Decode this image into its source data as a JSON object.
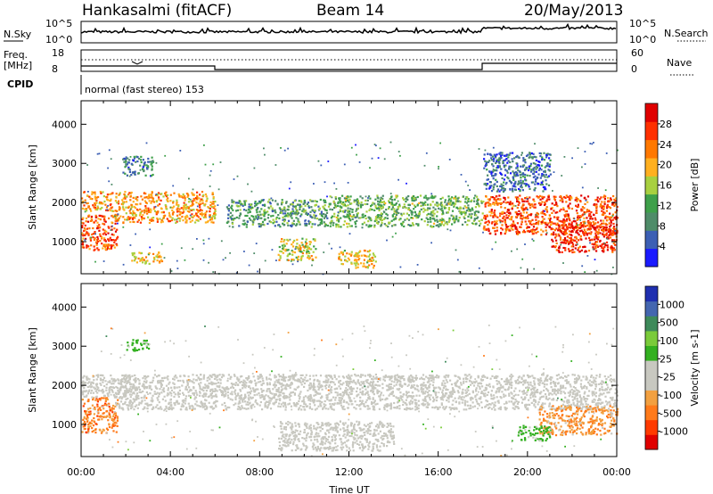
{
  "header": {
    "station": "Hankasalmi (fitACF)",
    "beam": "Beam 14",
    "date": "20/May/2013"
  },
  "strip_labels": {
    "nsky": "N.Sky",
    "nsky_top": "10^5",
    "nsky_bottom": "10^0",
    "nsearch": "N.Search",
    "nsearch_top": "10^5",
    "nsearch_bottom": "10^0",
    "freq_line1": "Freq.",
    "freq_line2": "[MHz]",
    "freq_top": "18",
    "freq_bottom": "8",
    "nave": "Nave",
    "nave_top": "60",
    "nave_bottom": "0",
    "cpid": "CPID",
    "mode": "normal (fast stereo) 153"
  },
  "x_axis": {
    "label": "Time UT",
    "ticks": [
      "00:00",
      "04:00",
      "08:00",
      "12:00",
      "16:00",
      "20:00",
      "00:00"
    ]
  },
  "colors": {
    "power": [
      "#1a1aff",
      "#3c5fb4",
      "#4f8c69",
      "#3ea04a",
      "#a8d040",
      "#ffb020",
      "#ff7800",
      "#ff3000",
      "#e00000"
    ],
    "velocity": [
      "#e00000",
      "#ff3a00",
      "#ff7a1a",
      "#f2a040",
      "#c8c8c0",
      "#c8c8c0",
      "#33b020",
      "#7acb3a",
      "#3e8a5a",
      "#4466b0",
      "#1f2fb0"
    ]
  },
  "chart_data": [
    {
      "type": "heatmap",
      "name": "power-panel",
      "xlabel": "Time UT",
      "ylabel": "Slant Range [km]",
      "xlim": [
        0,
        24
      ],
      "ylim": [
        180,
        4600
      ],
      "yticks": [
        "1000",
        "2000",
        "3000",
        "4000"
      ],
      "ytick_values": [
        1000,
        2000,
        3000,
        4000
      ],
      "colorbar": {
        "label": "Power [dB]",
        "ticks": [
          "4",
          "8",
          "12",
          "16",
          "20",
          "24",
          "28"
        ],
        "tick_values": [
          4,
          8,
          12,
          16,
          20,
          24,
          28
        ],
        "range": [
          0,
          30
        ]
      },
      "echo_regions": [
        {
          "t": [
            0.0,
            1.6
          ],
          "range": [
            800,
            1700
          ],
          "value": 24
        },
        {
          "t": [
            0.0,
            1.4
          ],
          "range": [
            1800,
            2300
          ],
          "value": 20
        },
        {
          "t": [
            1.5,
            6.0
          ],
          "range": [
            1500,
            2300
          ],
          "value": 20
        },
        {
          "t": [
            1.8,
            3.2
          ],
          "range": [
            2700,
            3200
          ],
          "value": 8
        },
        {
          "t": [
            2.2,
            3.6
          ],
          "range": [
            450,
            750
          ],
          "value": 18
        },
        {
          "t": [
            6.5,
            11.0
          ],
          "range": [
            1400,
            2100
          ],
          "value": 10
        },
        {
          "t": [
            8.8,
            10.5
          ],
          "range": [
            550,
            1100
          ],
          "value": 16
        },
        {
          "t": [
            11.5,
            13.2
          ],
          "range": [
            350,
            800
          ],
          "value": 18
        },
        {
          "t": [
            11.0,
            18.0
          ],
          "range": [
            1400,
            2200
          ],
          "value": 12
        },
        {
          "t": [
            18.0,
            24.0
          ],
          "range": [
            1200,
            2200
          ],
          "value": 24
        },
        {
          "t": [
            21.0,
            24.0
          ],
          "range": [
            750,
            1500
          ],
          "value": 26
        },
        {
          "t": [
            18.0,
            21.0
          ],
          "range": [
            2300,
            3300
          ],
          "value": 6
        }
      ]
    },
    {
      "type": "heatmap",
      "name": "velocity-panel",
      "xlabel": "Time UT",
      "ylabel": "Slant Range [km]",
      "xlim": [
        0,
        24
      ],
      "ylim": [
        180,
        4600
      ],
      "yticks": [
        "1000",
        "2000",
        "3000",
        "4000"
      ],
      "ytick_values": [
        1000,
        2000,
        3000,
        4000
      ],
      "colorbar": {
        "label": "Velocity [m s-1]",
        "ticks": [
          "-1000",
          "-500",
          "-100",
          "-25",
          "25",
          "100",
          "500",
          "1000"
        ],
        "tick_values": [
          -1000,
          -500,
          -100,
          -25,
          25,
          100,
          500,
          1000
        ],
        "range": [
          -1200,
          1200
        ]
      },
      "echo_regions": [
        {
          "t": [
            0.0,
            1.6
          ],
          "range": [
            800,
            1700
          ],
          "value": -600
        },
        {
          "t": [
            0.0,
            2.5
          ],
          "range": [
            1700,
            2300
          ],
          "value": 0
        },
        {
          "t": [
            2.0,
            3.0
          ],
          "range": [
            2900,
            3200
          ],
          "value": 150
        },
        {
          "t": [
            1.5,
            24.0
          ],
          "range": [
            1400,
            2300
          ],
          "value": 0
        },
        {
          "t": [
            8.8,
            14.0
          ],
          "range": [
            350,
            1100
          ],
          "value": 0
        },
        {
          "t": [
            20.5,
            24.0
          ],
          "range": [
            750,
            1500
          ],
          "value": -500
        },
        {
          "t": [
            19.5,
            21.0
          ],
          "range": [
            600,
            1000
          ],
          "value": 150
        }
      ]
    }
  ]
}
